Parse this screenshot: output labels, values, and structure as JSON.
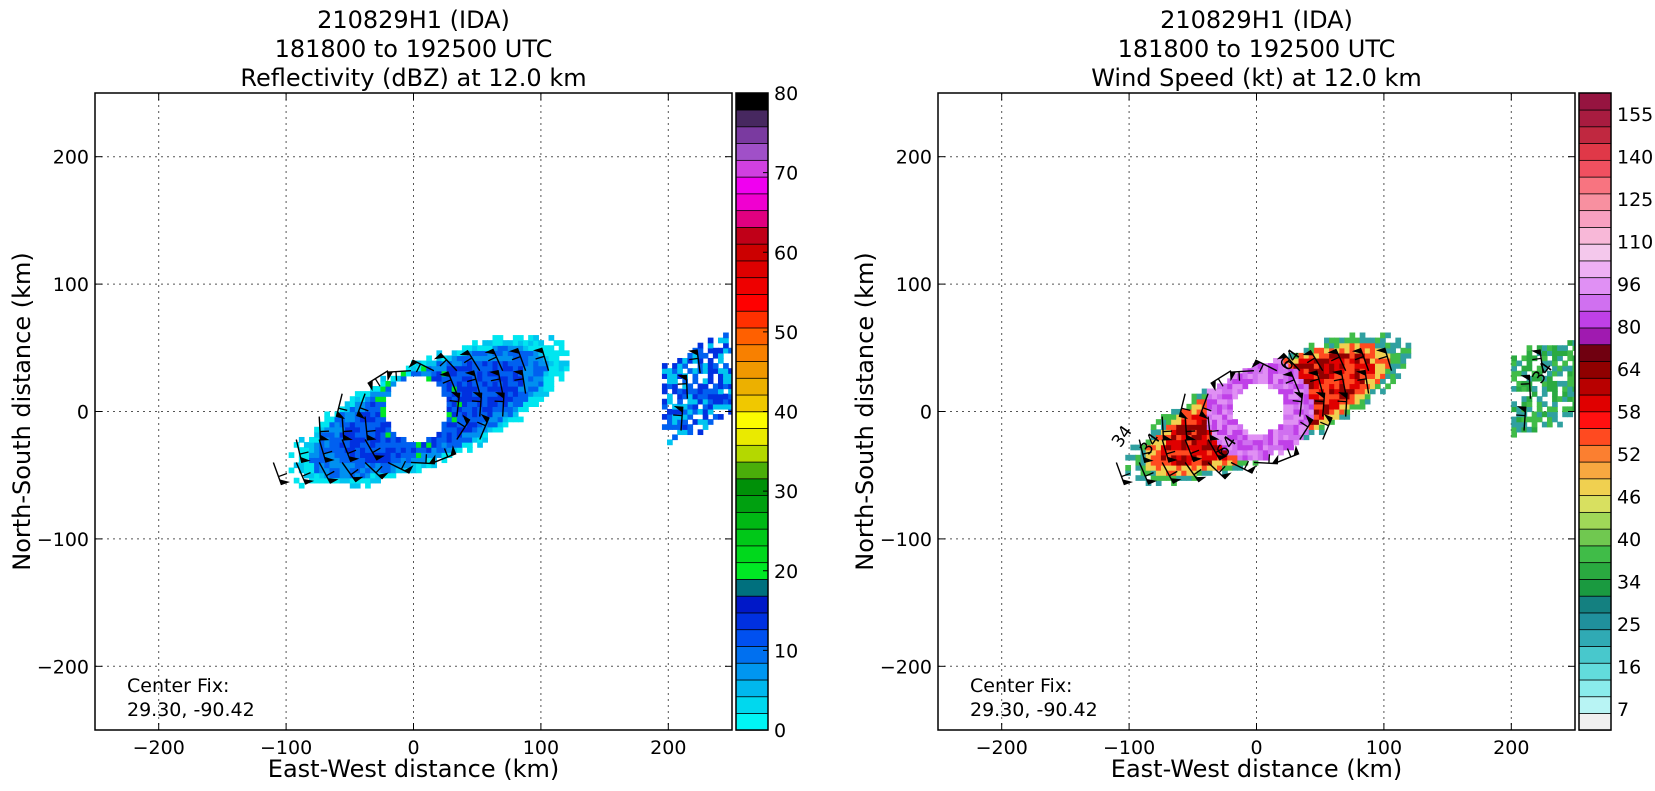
{
  "chart_data": [
    {
      "type": "heatmap",
      "title_lines": [
        "210829H1 (IDA)",
        "181800 to 192500 UTC",
        "Reflectivity (dBZ) at 12.0 km"
      ],
      "xlabel": "East-West distance (km)",
      "ylabel": "North-South distance (km)",
      "xlim": [
        -250,
        250
      ],
      "ylim": [
        -250,
        250
      ],
      "x_ticks": [
        -200,
        -100,
        0,
        100,
        200
      ],
      "y_ticks": [
        -200,
        -100,
        0,
        100,
        200
      ],
      "grid": true,
      "annotation_lines": [
        "Center Fix:",
        "29.30, -90.42"
      ],
      "colorbar": {
        "min": 0,
        "max": 80,
        "tick_values": [
          0,
          10,
          20,
          30,
          40,
          50,
          60,
          70,
          80
        ],
        "colors": [
          "#00f5f5",
          "#00d8ee",
          "#00b8ee",
          "#0096f0",
          "#0070f0",
          "#0050f0",
          "#0030e0",
          "#0018c8",
          "#00707e",
          "#00e824",
          "#00d81c",
          "#00c818",
          "#00b814",
          "#00a010",
          "#009008",
          "#4aae0a",
          "#b4d800",
          "#eaea00",
          "#fbfb00",
          "#f0c800",
          "#ecb000",
          "#f09800",
          "#f88000",
          "#ff6000",
          "#ff3000",
          "#ff0000",
          "#ee0000",
          "#dd0000",
          "#cc0000",
          "#c00018",
          "#e00080",
          "#f000d0",
          "#f000f0",
          "#d040e0",
          "#a050c8",
          "#7a3aa0",
          "#472860",
          "#000000"
        ]
      },
      "field": {
        "shape": "eyewall-spiral",
        "eye_center": [
          0,
          0
        ],
        "eye_radius_km": 25,
        "outer_extent_x": [
          -110,
          130
        ],
        "outer_extent_y": [
          -68,
          63
        ],
        "dominant_levels_dbz": [
          5,
          15
        ],
        "colors": [
          "#00e6f0",
          "#00c4f0",
          "#0090f0",
          "#0060f0",
          "#0030e0",
          "#00e824"
        ]
      },
      "outer_band": {
        "x_range": [
          195,
          250
        ],
        "y_range": [
          -30,
          65
        ],
        "colors": [
          "#00c4f0",
          "#0060f0",
          "#0030e0"
        ]
      }
    },
    {
      "type": "heatmap",
      "title_lines": [
        "210829H1 (IDA)",
        "181800 to 192500 UTC",
        "Wind Speed (kt) at 12.0 km"
      ],
      "xlabel": "East-West distance (km)",
      "ylabel": "North-South distance (km)",
      "xlim": [
        -250,
        250
      ],
      "ylim": [
        -250,
        250
      ],
      "x_ticks": [
        -200,
        -100,
        0,
        100,
        200
      ],
      "y_ticks": [
        -200,
        -100,
        0,
        100,
        200
      ],
      "grid": true,
      "annotation_lines": [
        "Center Fix:",
        "29.30, -90.42"
      ],
      "contour_labels": [
        "34",
        "34",
        "64",
        "64",
        "34"
      ],
      "colorbar": {
        "tick_labels": [
          "7",
          "16",
          "25",
          "34",
          "40",
          "46",
          "52",
          "58",
          "64",
          "80",
          "96",
          "110",
          "125",
          "140",
          "155"
        ],
        "colors": [
          "#f0f0f0",
          "#b8f4f4",
          "#8aecec",
          "#62dcdc",
          "#48c8cc",
          "#30aab4",
          "#20909c",
          "#148080",
          "#1a9a40",
          "#2aaa40",
          "#40bc48",
          "#70c850",
          "#a0d858",
          "#d8e060",
          "#f0d050",
          "#f8a840",
          "#fb7f30",
          "#ff4a20",
          "#ff1010",
          "#e00000",
          "#b80000",
          "#900000",
          "#700010",
          "#a01ab0",
          "#c040e8",
          "#d070f0",
          "#e090f4",
          "#eeb0f4",
          "#f4c8ec",
          "#f8b8d8",
          "#f8a0c0",
          "#f890a0",
          "#f87480",
          "#f05060",
          "#e03848",
          "#c02840",
          "#a81c40",
          "#961440"
        ]
      },
      "field": {
        "shape": "eyewall-spiral",
        "eye_center": [
          0,
          0
        ],
        "eye_radius_km": 20,
        "outer_extent_x": [
          -115,
          128
        ],
        "outer_extent_y": [
          -58,
          58
        ],
        "colors": [
          "#30a0a0",
          "#40bc48",
          "#f0d050",
          "#ff4a20",
          "#e00000",
          "#900000",
          "#c040e8",
          "#d070f0",
          "#e090f4"
        ]
      },
      "outer_band": {
        "x_range": [
          200,
          250
        ],
        "y_range": [
          -20,
          55
        ],
        "colors": [
          "#40bc48",
          "#2aaa40",
          "#30a0a0"
        ]
      }
    }
  ]
}
